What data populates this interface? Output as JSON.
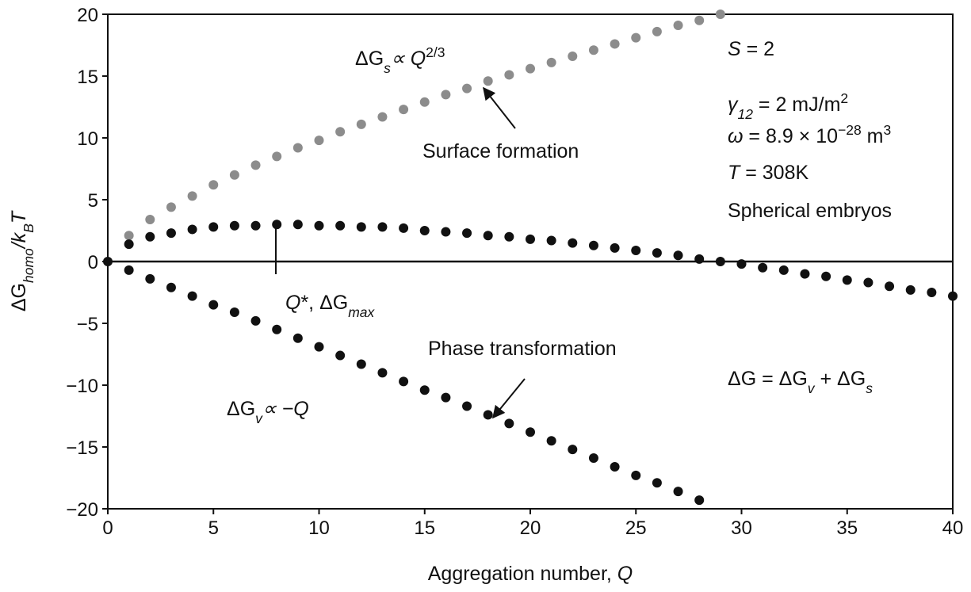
{
  "chart_data": {
    "type": "scatter",
    "xlabel": [
      {
        "text": "Aggregation number, ",
        "style": "normal"
      },
      {
        "text": "Q",
        "style": "italic"
      }
    ],
    "ylabel": [
      {
        "text": "ΔG",
        "style": "normal"
      },
      {
        "text": "homo",
        "style": "sub"
      },
      {
        "text": "/k",
        "style": "italic"
      },
      {
        "text": "B",
        "style": "sub"
      },
      {
        "text": "T",
        "style": "italic"
      }
    ],
    "xlim": [
      0,
      40
    ],
    "xticks": [
      0,
      5,
      10,
      15,
      20,
      25,
      30,
      35,
      40
    ],
    "ylim": [
      -20,
      20
    ],
    "yticks": [
      {
        "value": -20,
        "label": "−20"
      },
      {
        "value": -15,
        "label": "−15"
      },
      {
        "value": -10,
        "label": "−10"
      },
      {
        "value": -5,
        "label": "−5"
      },
      0,
      5,
      10,
      15,
      20
    ],
    "series": [
      {
        "color": "#8c8c8c",
        "x": [
          1,
          2,
          3,
          4,
          5,
          6,
          7,
          8,
          9,
          10,
          11,
          12,
          13,
          14,
          15,
          16,
          17,
          18,
          19,
          20,
          21,
          22,
          23,
          24,
          25,
          26,
          27,
          28,
          29
        ],
        "values": [
          2.1,
          3.4,
          4.4,
          5.3,
          6.2,
          7.0,
          7.8,
          8.5,
          9.2,
          9.8,
          10.5,
          11.1,
          11.7,
          12.3,
          12.9,
          13.5,
          14.0,
          14.6,
          15.1,
          15.6,
          16.1,
          16.6,
          17.1,
          17.6,
          18.1,
          18.6,
          19.1,
          19.5,
          20.0
        ]
      },
      {
        "color": "#111111",
        "x": [
          1,
          2,
          3,
          4,
          5,
          6,
          7,
          8,
          9,
          10,
          11,
          12,
          13,
          14,
          15,
          16,
          17,
          18,
          19,
          20,
          21,
          22,
          23,
          24,
          25,
          26,
          27,
          28
        ],
        "values": [
          -0.7,
          -1.4,
          -2.1,
          -2.8,
          -3.5,
          -4.1,
          -4.8,
          -5.5,
          -6.2,
          -6.9,
          -7.6,
          -8.3,
          -9.0,
          -9.7,
          -10.4,
          -11.0,
          -11.7,
          -12.4,
          -13.1,
          -13.8,
          -14.5,
          -15.2,
          -15.9,
          -16.6,
          -17.3,
          -17.9,
          -18.6,
          -19.3
        ]
      },
      {
        "color": "#111111",
        "x": [
          0,
          1,
          2,
          3,
          4,
          5,
          6,
          7,
          8,
          9,
          10,
          11,
          12,
          13,
          14,
          15,
          16,
          17,
          18,
          19,
          20,
          21,
          22,
          23,
          24,
          25,
          26,
          27,
          28,
          29,
          30,
          31,
          32,
          33,
          34,
          35,
          36,
          37,
          38,
          39,
          40
        ],
        "values": [
          0,
          1.4,
          2.0,
          2.3,
          2.6,
          2.8,
          2.9,
          2.9,
          3.0,
          3.0,
          2.9,
          2.9,
          2.8,
          2.8,
          2.7,
          2.5,
          2.4,
          2.3,
          2.1,
          2.0,
          1.8,
          1.7,
          1.5,
          1.3,
          1.1,
          0.9,
          0.7,
          0.5,
          0.2,
          0.0,
          -0.2,
          -0.5,
          -0.7,
          -1.0,
          -1.2,
          -1.5,
          -1.7,
          -2.0,
          -2.3,
          -2.5,
          -2.8
        ]
      }
    ],
    "annotations": [
      [
        {
          "text": "ΔG",
          "style": "normal"
        },
        {
          "text": "s",
          "style": "sub"
        },
        {
          "text": "∝ Q",
          "style": "italic"
        },
        {
          "text": "2/3",
          "style": "sup"
        }
      ],
      [
        {
          "text": "Surface formation",
          "style": "normal"
        }
      ],
      [
        {
          "text": "S",
          "style": "italic"
        },
        {
          "text": " = 2",
          "style": "normal"
        }
      ],
      [
        {
          "text": "γ",
          "style": "italic"
        },
        {
          "text": "12",
          "style": "sub"
        },
        {
          "text": " = 2 mJ/m",
          "style": "normal"
        },
        {
          "text": "2",
          "style": "sup"
        }
      ],
      [
        {
          "text": "ω",
          "style": "italic"
        },
        {
          "text": " = 8.9 × 10",
          "style": "normal"
        },
        {
          "text": "−28",
          "style": "sup"
        },
        {
          "text": " m",
          "style": "normal"
        },
        {
          "text": "3",
          "style": "sup"
        }
      ],
      [
        {
          "text": "T",
          "style": "italic"
        },
        {
          "text": " = 308K",
          "style": "normal"
        }
      ],
      [
        {
          "text": "Spherical embryos",
          "style": "normal"
        }
      ],
      [
        {
          "text": "Q",
          "style": "italic"
        },
        {
          "text": "*, ΔG",
          "style": "normal"
        },
        {
          "text": "max",
          "style": "sub"
        }
      ],
      [
        {
          "text": "Phase transformation",
          "style": "normal"
        }
      ],
      [
        {
          "text": "ΔG",
          "style": "normal"
        },
        {
          "text": " = ΔG",
          "style": "normal"
        },
        {
          "text": "v",
          "style": "sub"
        },
        {
          "text": " + ΔG",
          "style": "normal"
        },
        {
          "text": "s",
          "style": "sub"
        }
      ],
      [
        {
          "text": "ΔG",
          "style": "normal"
        },
        {
          "text": "v",
          "style": "sub"
        },
        {
          "text": "∝ −Q",
          "style": "italic"
        }
      ]
    ]
  }
}
